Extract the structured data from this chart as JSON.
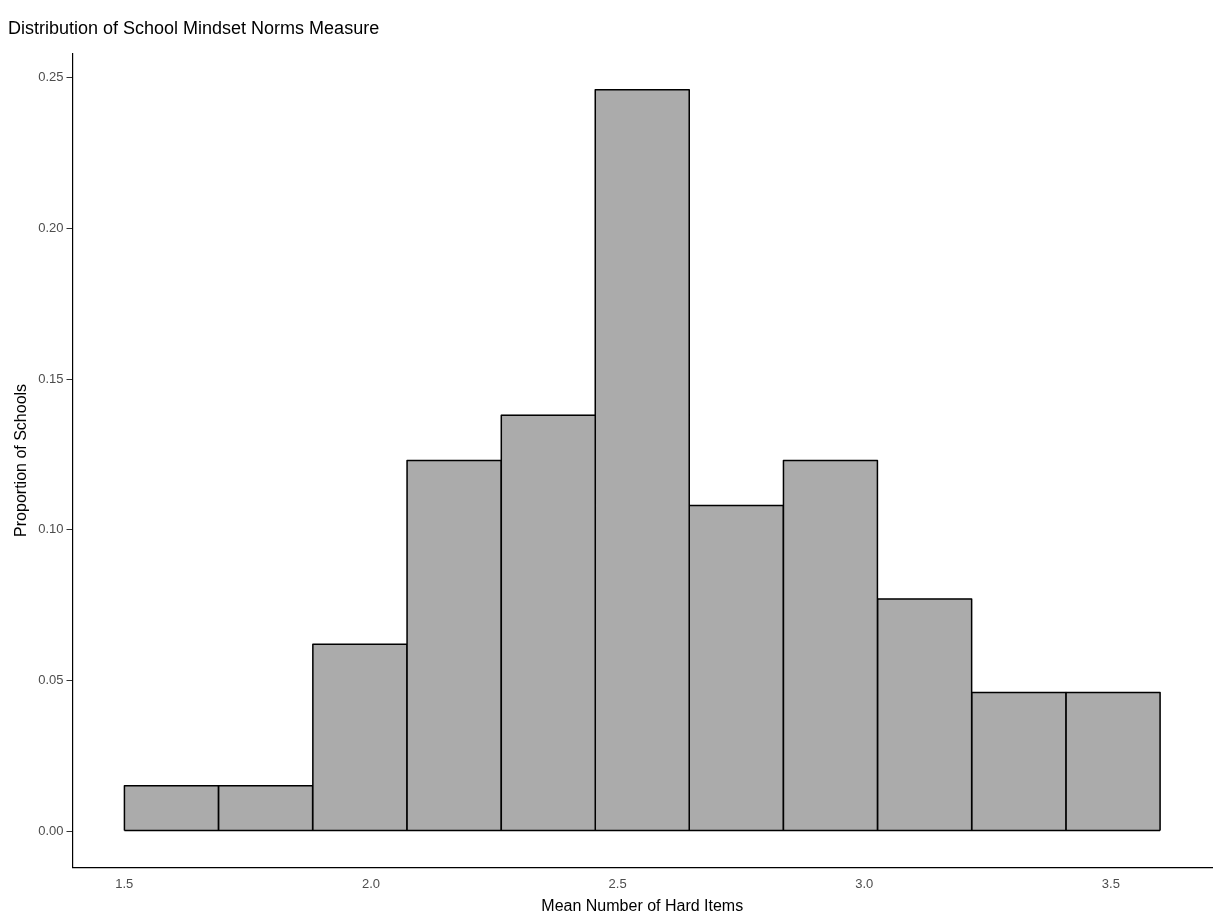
{
  "chart_data": {
    "type": "histogram",
    "title": "Distribution of School Mindset Norms Measure",
    "xlabel": "Mean Number of Hard Items",
    "ylabel": "Proportion of Schools",
    "bins": [
      1.5,
      1.691,
      1.882,
      2.073,
      2.264,
      2.455,
      2.645,
      2.836,
      3.027,
      3.218,
      3.409,
      3.6
    ],
    "values": [
      0.015,
      0.015,
      0.062,
      0.123,
      0.138,
      0.246,
      0.108,
      0.123,
      0.077,
      0.046,
      0.046
    ],
    "color": "#ababab",
    "xlim": [
      1.395,
      3.705
    ],
    "xticks": [
      1.5,
      {
        "value": 2,
        "label": "2.0"
      },
      2.5,
      {
        "value": 3,
        "label": "3.0"
      },
      3.5
    ],
    "ylim": [
      -0.012,
      0.258
    ],
    "yticks": [
      {
        "value": 0,
        "label": "0.00"
      },
      0.05,
      {
        "value": 0.1,
        "label": "0.10"
      },
      0.15,
      {
        "value": 0.2,
        "label": "0.20"
      },
      0.25
    ],
    "grid": false,
    "legend": false
  }
}
